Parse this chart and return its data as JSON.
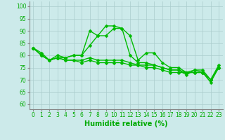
{
  "x": [
    0,
    1,
    2,
    3,
    4,
    5,
    6,
    7,
    8,
    9,
    10,
    11,
    12,
    13,
    14,
    15,
    16,
    17,
    18,
    19,
    20,
    21,
    22,
    23
  ],
  "series": [
    [
      83,
      81,
      78,
      79,
      79,
      80,
      80,
      90,
      88,
      92,
      92,
      91,
      88,
      78,
      81,
      81,
      77,
      75,
      75,
      73,
      74,
      74,
      70,
      76
    ],
    [
      83,
      80,
      78,
      80,
      79,
      80,
      80,
      84,
      88,
      88,
      91,
      91,
      80,
      77,
      77,
      76,
      75,
      74,
      74,
      72,
      74,
      73,
      70,
      75
    ],
    [
      83,
      80,
      78,
      79,
      78,
      78,
      78,
      79,
      78,
      78,
      78,
      78,
      77,
      76,
      76,
      76,
      75,
      74,
      74,
      73,
      73,
      73,
      70,
      75
    ],
    [
      83,
      80,
      78,
      79,
      78,
      78,
      77,
      78,
      77,
      77,
      77,
      77,
      76,
      76,
      75,
      75,
      74,
      73,
      73,
      73,
      73,
      73,
      69,
      75
    ]
  ],
  "line_color": "#00bb00",
  "marker": "D",
  "markersize": 2.5,
  "linewidth": 1.0,
  "xlabel": "Humidité relative (%)",
  "ylabel_ticks": [
    60,
    65,
    70,
    75,
    80,
    85,
    90,
    95,
    100
  ],
  "xlim": [
    -0.5,
    23.5
  ],
  "ylim": [
    58,
    102
  ],
  "bg_color": "#cceaea",
  "grid_color": "#aacccc",
  "tick_color": "#00aa00",
  "xlabel_color": "#00aa00",
  "tick_fontsize": 5.5,
  "xlabel_fontsize": 7
}
